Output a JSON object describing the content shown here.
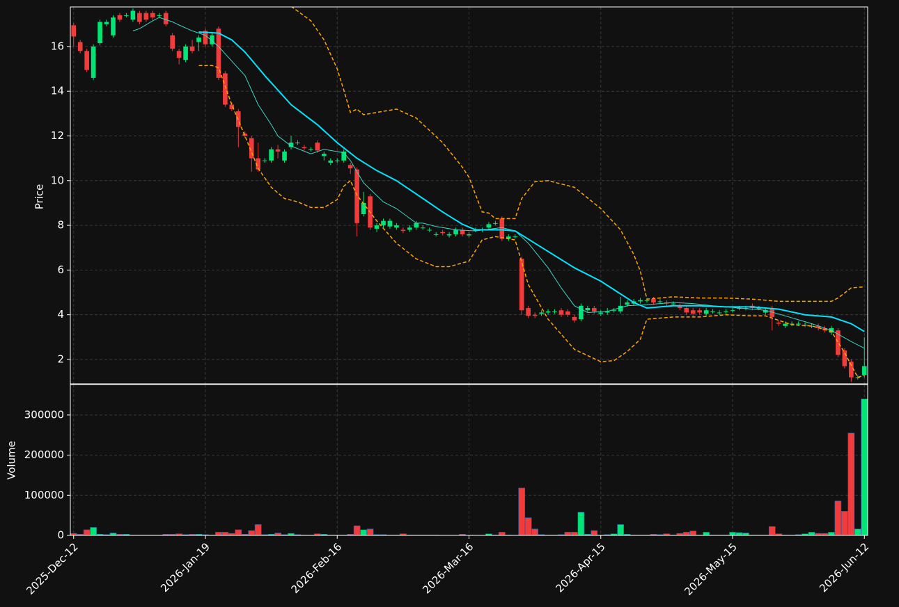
{
  "chart_data": [
    {
      "type": "candlestick",
      "ylabel": "Price",
      "xlim": [
        -0.5,
        120.5
      ],
      "ylim": [
        0.91,
        17.77
      ],
      "yticks": [
        2,
        4,
        6,
        8,
        10,
        12,
        14,
        16
      ],
      "grid": true,
      "up_color": "#00e676",
      "down_color": "#f23c3c",
      "open": [
        16.95,
        16.2,
        15.8,
        14.6,
        16.15,
        17.0,
        16.5,
        17.4,
        17.4,
        17.2,
        17.5,
        17.5,
        17.5,
        17.4,
        17.5,
        16.5,
        15.8,
        15.4,
        16.0,
        16.2,
        16.7,
        16.1,
        16.8,
        14.8,
        13.4,
        13.1,
        12.1,
        11.9,
        11.0,
        10.9,
        10.9,
        11.4,
        10.9,
        11.5,
        11.7,
        11.5,
        11.4,
        11.7,
        11.1,
        10.8,
        10.9,
        10.9,
        10.7,
        10.5,
        8.5,
        9.3,
        7.85,
        8.0,
        7.95,
        7.9,
        7.8,
        7.8,
        7.9,
        7.9,
        7.8,
        7.6,
        7.7,
        7.55,
        7.6,
        7.8,
        7.55,
        7.8,
        7.8,
        7.9,
        8.1,
        8.3,
        7.4,
        7.5,
        6.5,
        4.3,
        4.0,
        4.05,
        4.1,
        4.15,
        4.2,
        4.15,
        3.9,
        3.8,
        4.2,
        4.3,
        4.05,
        4.1,
        4.2,
        4.15,
        4.45,
        4.5,
        4.6,
        4.65,
        4.7,
        4.6,
        4.55,
        4.5,
        4.4,
        4.3,
        4.2,
        4.2,
        4.05,
        4.15,
        4.1,
        4.15,
        4.2,
        4.3,
        4.3,
        4.4,
        4.3,
        4.1,
        4.3,
        3.65,
        3.5,
        3.6,
        3.6,
        3.55,
        3.5,
        3.5,
        3.4,
        3.2,
        3.3,
        2.4,
        1.9,
        1.2,
        1.3
      ],
      "high": [
        17.05,
        16.3,
        15.9,
        16.1,
        17.2,
        17.2,
        17.4,
        17.5,
        17.5,
        17.7,
        17.6,
        17.6,
        17.6,
        17.5,
        17.6,
        16.6,
        15.9,
        16.1,
        16.3,
        16.5,
        16.8,
        16.6,
        16.9,
        14.9,
        13.5,
        13.2,
        12.2,
        12.0,
        11.7,
        11.0,
        11.5,
        11.6,
        11.4,
        12.0,
        11.8,
        11.6,
        11.5,
        11.8,
        11.3,
        11.0,
        11.0,
        11.4,
        10.8,
        10.6,
        9.5,
        9.4,
        8.1,
        8.3,
        8.3,
        8.1,
        7.9,
        8.0,
        8.2,
        8.0,
        7.9,
        7.7,
        7.8,
        7.7,
        7.9,
        7.9,
        7.7,
        7.9,
        7.9,
        8.15,
        8.2,
        8.4,
        7.6,
        7.6,
        6.6,
        4.4,
        4.1,
        4.2,
        4.25,
        4.25,
        4.3,
        4.25,
        4.0,
        4.5,
        4.4,
        4.4,
        4.2,
        4.3,
        4.3,
        4.8,
        4.65,
        4.7,
        4.75,
        4.75,
        4.8,
        4.7,
        4.65,
        4.6,
        4.5,
        4.4,
        4.3,
        4.3,
        4.3,
        4.25,
        4.2,
        4.25,
        4.3,
        4.4,
        4.4,
        4.5,
        4.4,
        4.3,
        4.4,
        3.75,
        3.7,
        3.7,
        3.7,
        3.65,
        3.6,
        3.6,
        3.5,
        3.5,
        3.4,
        2.5,
        2.0,
        1.3,
        3.0
      ],
      "low": [
        16.0,
        15.7,
        14.85,
        14.5,
        16.05,
        16.9,
        16.4,
        17.1,
        17.3,
        17.1,
        17.0,
        17.1,
        17.2,
        17.3,
        16.9,
        15.8,
        15.2,
        15.3,
        15.7,
        15.8,
        16.0,
        16.0,
        14.5,
        13.3,
        13.1,
        11.5,
        11.9,
        10.4,
        10.4,
        10.8,
        10.8,
        11.0,
        10.8,
        11.4,
        11.6,
        11.35,
        11.3,
        11.25,
        10.9,
        10.7,
        10.8,
        10.8,
        10.3,
        7.5,
        8.4,
        7.8,
        7.7,
        7.9,
        7.85,
        7.8,
        7.65,
        7.7,
        7.8,
        7.8,
        7.7,
        7.5,
        7.55,
        7.45,
        7.5,
        7.5,
        7.45,
        7.7,
        7.7,
        7.8,
        8.0,
        7.3,
        7.3,
        7.4,
        4.0,
        3.85,
        3.85,
        3.95,
        4.0,
        4.05,
        3.9,
        3.9,
        3.65,
        3.7,
        4.1,
        4.05,
        3.95,
        4.0,
        4.1,
        4.05,
        4.35,
        4.4,
        4.5,
        4.55,
        4.45,
        4.5,
        4.4,
        4.4,
        4.2,
        4.0,
        3.95,
        4.0,
        3.95,
        4.05,
        4.0,
        4.05,
        4.1,
        4.2,
        4.2,
        4.2,
        4.2,
        4.0,
        3.3,
        3.5,
        3.4,
        3.5,
        3.5,
        3.45,
        3.4,
        3.3,
        3.2,
        3.1,
        2.1,
        1.6,
        1.0,
        1.1,
        1.2
      ],
      "close": [
        16.45,
        15.8,
        14.95,
        16.0,
        17.1,
        17.1,
        17.3,
        17.2,
        17.4,
        17.6,
        17.1,
        17.2,
        17.3,
        17.4,
        17.0,
        15.9,
        15.5,
        16.0,
        15.8,
        16.4,
        16.1,
        16.5,
        14.6,
        13.4,
        13.2,
        12.4,
        12.0,
        11.0,
        10.5,
        10.9,
        11.4,
        11.3,
        11.3,
        11.7,
        11.7,
        11.45,
        11.4,
        11.35,
        11.2,
        10.9,
        10.9,
        11.3,
        10.55,
        8.1,
        9.0,
        7.9,
        8.0,
        8.2,
        8.2,
        8.0,
        7.75,
        7.9,
        8.1,
        7.9,
        7.8,
        7.6,
        7.65,
        7.6,
        7.8,
        7.6,
        7.6,
        7.8,
        7.8,
        8.05,
        8.1,
        7.4,
        7.5,
        7.5,
        4.2,
        3.95,
        3.95,
        4.1,
        4.15,
        4.15,
        4.0,
        4.0,
        3.75,
        4.4,
        4.3,
        4.15,
        4.1,
        4.15,
        4.2,
        4.4,
        4.55,
        4.6,
        4.65,
        4.65,
        4.55,
        4.6,
        4.5,
        4.5,
        4.3,
        4.1,
        4.05,
        4.1,
        4.2,
        4.15,
        4.1,
        4.15,
        4.2,
        4.3,
        4.3,
        4.3,
        4.3,
        4.2,
        3.9,
        3.6,
        3.6,
        3.6,
        3.6,
        3.55,
        3.5,
        3.4,
        3.3,
        3.4,
        2.2,
        1.7,
        1.2,
        1.2,
        1.7
      ],
      "lines": [
        {
          "color": "#3dd6c6",
          "width": 1,
          "style": "solid",
          "x": [
            9,
            10,
            12,
            13,
            15,
            16,
            18,
            20,
            22,
            24,
            26,
            28,
            30,
            31,
            33,
            36,
            38,
            41,
            42,
            44,
            47,
            49,
            52,
            53,
            55,
            58,
            61,
            65,
            67,
            69,
            72,
            74,
            76,
            78,
            81,
            84,
            87,
            91,
            94,
            97,
            101,
            105,
            108,
            112,
            115,
            118,
            120
          ],
          "values": [
            16.7,
            16.8,
            17.15,
            17.3,
            17.1,
            16.96,
            16.7,
            16.5,
            16.0,
            15.35,
            14.7,
            13.4,
            12.5,
            12.0,
            11.55,
            11.2,
            11.4,
            11.25,
            10.9,
            9.9,
            9.05,
            8.75,
            8.1,
            8.1,
            7.95,
            7.8,
            7.75,
            7.9,
            7.75,
            7.2,
            6.1,
            5.2,
            4.4,
            4.1,
            4.15,
            4.4,
            4.45,
            4.55,
            4.5,
            4.4,
            4.3,
            4.2,
            3.95,
            3.6,
            3.3,
            2.8,
            2.5
          ]
        },
        {
          "color": "#00e5ff",
          "width": 2,
          "style": "solid",
          "x": [
            19,
            22,
            24,
            26,
            29,
            33,
            37,
            40,
            43,
            46,
            49,
            53,
            56,
            59,
            61,
            65,
            67,
            70,
            76,
            80,
            85,
            87,
            91,
            95,
            99,
            103,
            107,
            111,
            115,
            118,
            120
          ],
          "values": [
            16.65,
            16.6,
            16.3,
            15.75,
            14.7,
            13.4,
            12.5,
            11.7,
            11.0,
            10.45,
            10.0,
            9.2,
            8.6,
            8.05,
            7.8,
            7.8,
            7.75,
            7.2,
            6.1,
            5.5,
            4.55,
            4.3,
            4.4,
            4.4,
            4.35,
            4.35,
            4.25,
            4.0,
            3.9,
            3.6,
            3.25
          ]
        },
        {
          "color": "#ffa500",
          "width": 1.5,
          "style": "dashed",
          "x": [
            33,
            36,
            38,
            40,
            41,
            42,
            43,
            44,
            46,
            49,
            52,
            56,
            59,
            60,
            62,
            63,
            64,
            67,
            68,
            70,
            72,
            76,
            80,
            83,
            85,
            86,
            87,
            91,
            95,
            99,
            103,
            107,
            111,
            115,
            116,
            118,
            120
          ],
          "values": [
            17.8,
            17.15,
            16.3,
            15.0,
            14.05,
            13.05,
            13.2,
            12.95,
            13.05,
            13.2,
            12.8,
            11.7,
            10.6,
            10.15,
            8.6,
            8.55,
            8.3,
            8.3,
            9.2,
            9.95,
            10.0,
            9.7,
            8.75,
            7.8,
            6.7,
            5.95,
            4.7,
            4.8,
            4.75,
            4.75,
            4.7,
            4.6,
            4.6,
            4.6,
            4.75,
            5.2,
            5.25
          ]
        },
        {
          "color": "#ffa500",
          "width": 1.5,
          "style": "dashed",
          "x": [
            19,
            21,
            22,
            24,
            26,
            28,
            30,
            32,
            34,
            36,
            38,
            40,
            41,
            42,
            43,
            46,
            49,
            52,
            55,
            57,
            60,
            62,
            64,
            67,
            69,
            72,
            76,
            80,
            82,
            84,
            86,
            87,
            91,
            95,
            99,
            103,
            105,
            109,
            112,
            115,
            117,
            119,
            120
          ],
          "values": [
            15.15,
            15.15,
            15.05,
            13.4,
            12.0,
            10.55,
            9.7,
            9.2,
            9.05,
            8.8,
            8.8,
            9.15,
            9.75,
            10.0,
            9.35,
            8.2,
            7.2,
            6.5,
            6.15,
            6.15,
            6.4,
            7.35,
            7.5,
            7.35,
            5.35,
            3.8,
            2.45,
            1.9,
            1.95,
            2.35,
            2.9,
            3.8,
            3.9,
            3.9,
            4.0,
            3.95,
            3.95,
            3.55,
            3.5,
            3.25,
            2.3,
            1.2,
            1.3
          ]
        }
      ]
    },
    {
      "type": "bar",
      "ylabel": "Volume",
      "xlim": [
        -0.5,
        120.5
      ],
      "ylim": [
        0,
        376000
      ],
      "yticks": [
        0,
        100000,
        200000,
        300000
      ],
      "grid": true,
      "xticks": [
        {
          "value": 0,
          "label": "2025-Dec-12"
        },
        {
          "value": 20,
          "label": "2026-Jan-19"
        },
        {
          "value": 40,
          "label": "2026-Feb-16"
        },
        {
          "value": 60,
          "label": "2026-Mar-16"
        },
        {
          "value": 80,
          "label": "2026-Apr-15"
        },
        {
          "value": 100,
          "label": "2026-May-15"
        },
        {
          "value": 120,
          "label": "2026-Jun-12"
        }
      ],
      "values": [
        5000,
        3000,
        14000,
        20000,
        3000,
        2000,
        6000,
        3000,
        3000,
        1000,
        1000,
        1000,
        1000,
        1000,
        3000,
        3000,
        4000,
        2000,
        3000,
        3000,
        2000,
        1000,
        8000,
        8000,
        5000,
        14000,
        3000,
        12000,
        27000,
        2000,
        3000,
        6000,
        2000,
        5000,
        2000,
        1000,
        1000,
        4000,
        3000,
        1000,
        1000,
        1000,
        3000,
        24000,
        14000,
        16000,
        2000,
        2000,
        1000,
        1000,
        4000,
        1000,
        1000,
        1000,
        1000,
        1000,
        500,
        500,
        500,
        3000,
        500,
        500,
        500,
        4000,
        1000,
        8000,
        1000,
        500,
        118000,
        44000,
        16000,
        2000,
        1000,
        1000,
        2000,
        8000,
        8000,
        58000,
        3000,
        12000,
        1000,
        2000,
        4000,
        27000,
        3000,
        1000,
        1000,
        1000,
        3000,
        2000,
        4000,
        1000,
        5000,
        8000,
        11000,
        1000,
        8000,
        1000,
        1000,
        1000,
        8000,
        7000,
        6000,
        1000,
        1000,
        1000,
        22000,
        4000,
        1000,
        1000,
        2000,
        4000,
        8000,
        5000,
        5000,
        8000,
        86000,
        60000,
        255000,
        16000,
        340000
      ]
    }
  ]
}
